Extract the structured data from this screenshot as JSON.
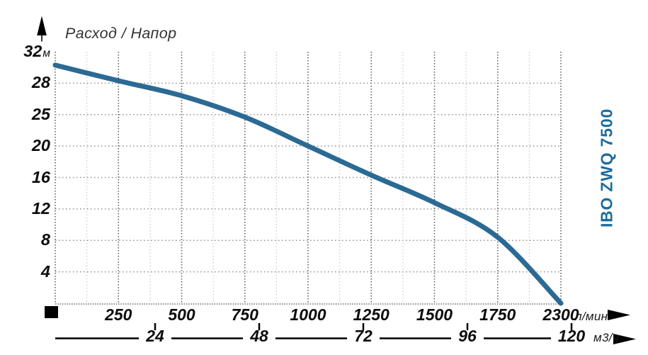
{
  "page": {
    "background": "#ffffff"
  },
  "chart_data": {
    "type": "line",
    "title": "Расход / Напор",
    "y_axis": {
      "unit": "м",
      "ticks": [
        32,
        28,
        25,
        20,
        16,
        12,
        8,
        4
      ],
      "baseline_value": 0
    },
    "x_axis_primary": {
      "unit": "л/мин",
      "ticks": [
        250,
        500,
        750,
        1000,
        1250,
        1500,
        1750,
        2300
      ]
    },
    "x_axis_secondary": {
      "unit": "м3/ч",
      "ticks": [
        24,
        48,
        72,
        96,
        120
      ]
    },
    "series": [
      {
        "name": "IBO ZWQ 7500",
        "points": [
          {
            "flow_lmin": 0,
            "head_m": 30.3
          },
          {
            "flow_lmin": 250,
            "head_m": 28.3
          },
          {
            "flow_lmin": 500,
            "head_m": 26.8
          },
          {
            "flow_lmin": 750,
            "head_m": 24.6
          },
          {
            "flow_lmin": 1000,
            "head_m": 20.0
          },
          {
            "flow_lmin": 1250,
            "head_m": 16.3
          },
          {
            "flow_lmin": 1500,
            "head_m": 12.8
          },
          {
            "flow_lmin": 1750,
            "head_m": 8.4
          },
          {
            "flow_lmin": 2300,
            "head_m": 0.0
          }
        ]
      }
    ],
    "grid": true,
    "legend_position": "right-vertical",
    "colors": {
      "curve": "#2b6a94",
      "brand_text": "#1d6b9d",
      "axis_text": "#0d0d0d",
      "title_text": "#333333",
      "grid_major": "#606060",
      "grid_horizontal": "#909090",
      "grid_minor": "#c8c8c8",
      "marker_black": "#000000"
    }
  }
}
